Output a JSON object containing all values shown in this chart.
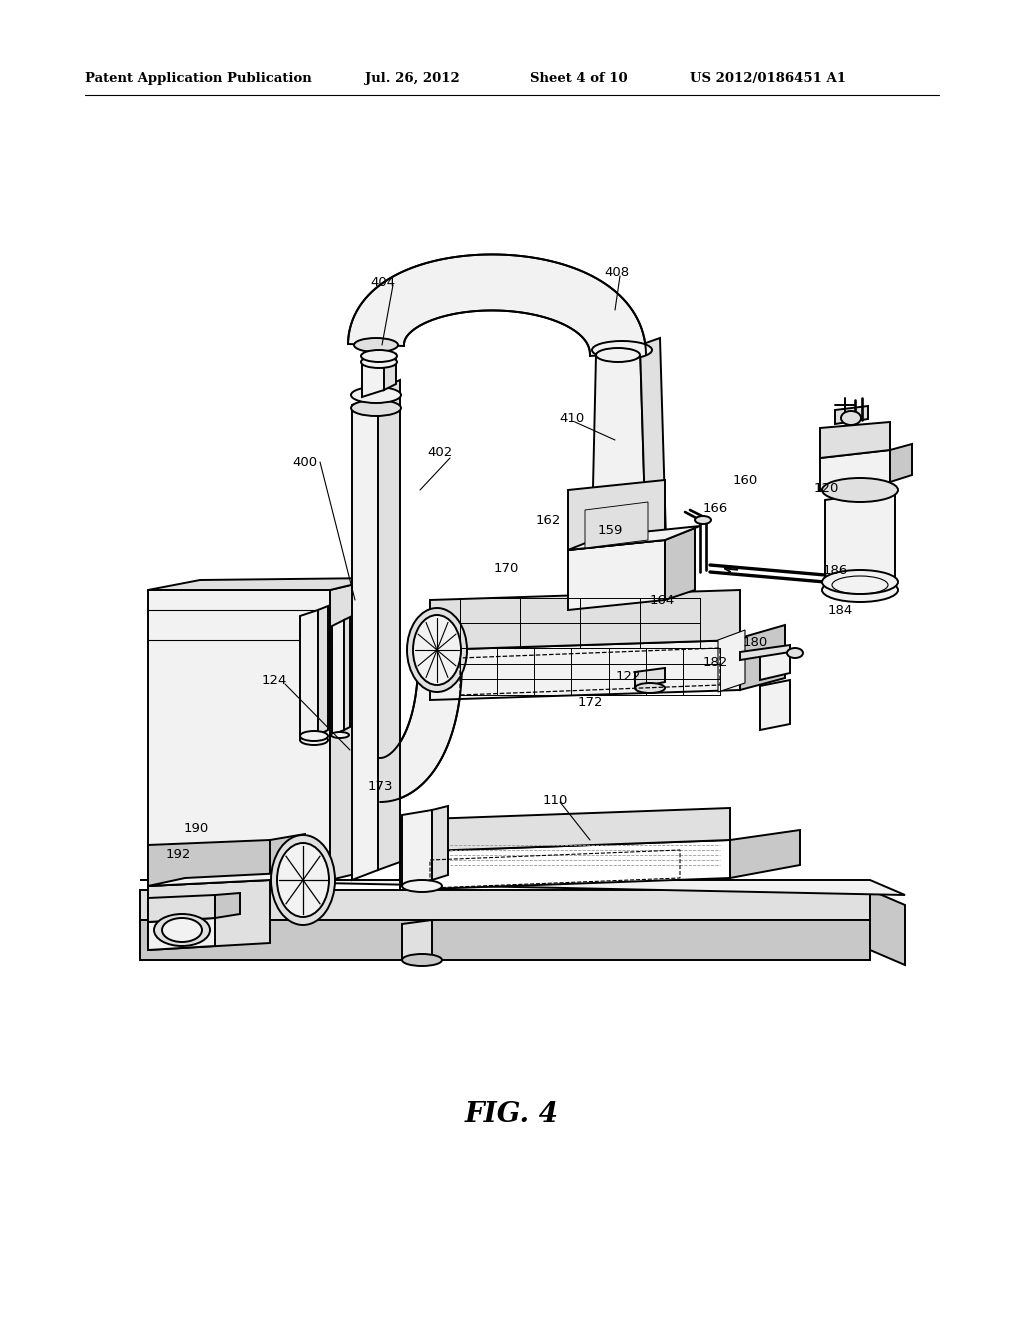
{
  "bg_color": "#ffffff",
  "header_text": "Patent Application Publication",
  "header_date": "Jul. 26, 2012",
  "header_sheet": "Sheet 4 of 10",
  "header_patent": "US 2012/0186451 A1",
  "fig_label": "FIG. 4",
  "lw_main": 1.4,
  "lw_thin": 0.8,
  "fill_light": "#f2f2f2",
  "fill_mid": "#e0e0e0",
  "fill_dark": "#c8c8c8",
  "fill_white": "#ffffff",
  "ec": "#000000"
}
